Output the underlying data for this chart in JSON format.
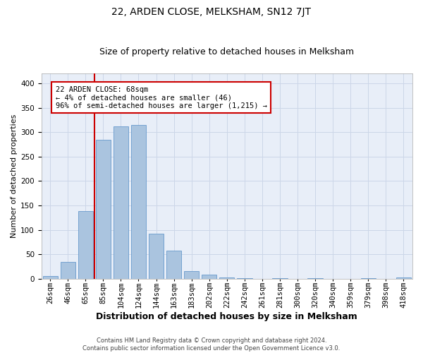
{
  "title": "22, ARDEN CLOSE, MELKSHAM, SN12 7JT",
  "subtitle": "Size of property relative to detached houses in Melksham",
  "xlabel": "Distribution of detached houses by size in Melksham",
  "ylabel": "Number of detached properties",
  "footer_line1": "Contains HM Land Registry data © Crown copyright and database right 2024.",
  "footer_line2": "Contains public sector information licensed under the Open Government Licence v3.0.",
  "categories": [
    "26sqm",
    "46sqm",
    "65sqm",
    "85sqm",
    "104sqm",
    "124sqm",
    "144sqm",
    "163sqm",
    "183sqm",
    "202sqm",
    "222sqm",
    "242sqm",
    "261sqm",
    "281sqm",
    "300sqm",
    "320sqm",
    "340sqm",
    "359sqm",
    "379sqm",
    "398sqm",
    "418sqm"
  ],
  "bar_values": [
    5,
    35,
    138,
    285,
    312,
    315,
    92,
    57,
    16,
    8,
    3,
    1,
    0,
    1,
    0,
    1,
    0,
    0,
    1,
    0,
    2
  ],
  "bar_color": "#aac4df",
  "bar_edge_color": "#6699cc",
  "vline_color": "#cc0000",
  "annotation_text": "22 ARDEN CLOSE: 68sqm\n← 4% of detached houses are smaller (46)\n96% of semi-detached houses are larger (1,215) →",
  "annotation_box_color": "white",
  "annotation_box_edge_color": "#cc0000",
  "ylim": [
    0,
    420
  ],
  "yticks": [
    0,
    50,
    100,
    150,
    200,
    250,
    300,
    350,
    400
  ],
  "grid_color": "#ccd6e8",
  "background_color": "#e8eef8",
  "title_fontsize": 10,
  "subtitle_fontsize": 9,
  "ylabel_fontsize": 8,
  "xlabel_fontsize": 9,
  "tick_fontsize": 7.5,
  "annot_fontsize": 7.5
}
